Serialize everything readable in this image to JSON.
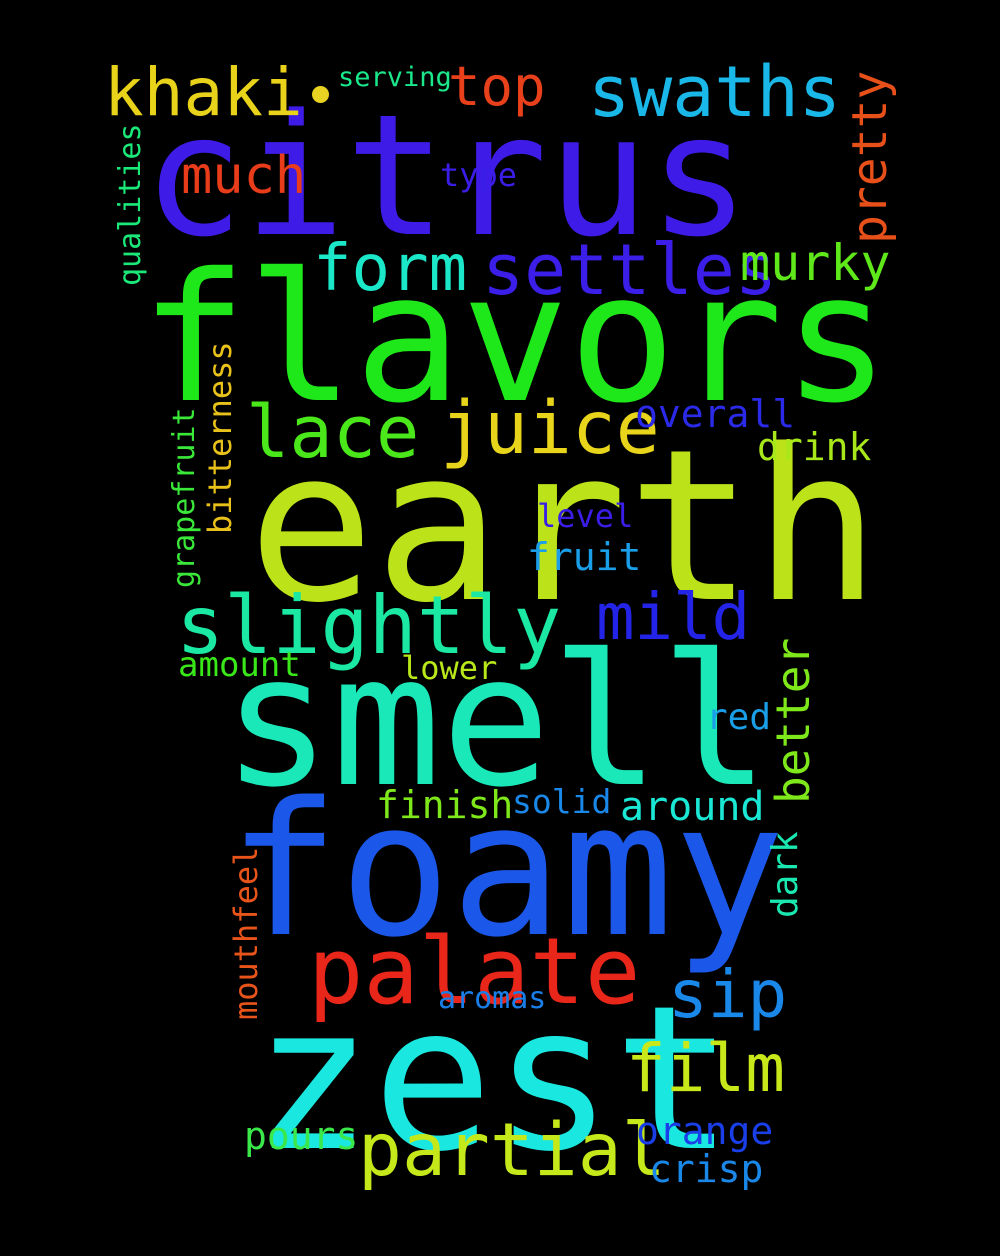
{
  "words": {
    "citrus": {
      "text": "citrus",
      "color": "#3f1be8"
    },
    "flavors": {
      "text": "flavors",
      "color": "#1fe81a"
    },
    "earth": {
      "text": "earth",
      "color": "#bce31a"
    },
    "smell": {
      "text": "smell",
      "color": "#1ae8b8"
    },
    "foamy": {
      "text": "foamy",
      "color": "#1b57e8"
    },
    "zest": {
      "text": "zest",
      "color": "#1ae8e0"
    },
    "palate": {
      "text": "palate",
      "color": "#e8261a"
    },
    "slightly": {
      "text": "slightly",
      "color": "#1ae8a3"
    },
    "settles": {
      "text": "settles",
      "color": "#3b1ee8"
    },
    "juice": {
      "text": "juice",
      "color": "#e8d41a"
    },
    "lace": {
      "text": "lace",
      "color": "#4ae81a"
    },
    "form": {
      "text": "form",
      "color": "#1ae8c8"
    },
    "khaki": {
      "text": "khaki",
      "color": "#e8d21a"
    },
    "swaths": {
      "text": "swaths",
      "color": "#1ab8e8"
    },
    "top": {
      "text": "top",
      "color": "#e8401a"
    },
    "much": {
      "text": "much",
      "color": "#e83c1a"
    },
    "murky": {
      "text": "murky",
      "color": "#5fe81a"
    },
    "mild": {
      "text": "mild",
      "color": "#2424e8"
    },
    "partial": {
      "text": "partial",
      "color": "#c5e81a"
    },
    "film": {
      "text": "film",
      "color": "#c8e81a"
    },
    "sip": {
      "text": "sip",
      "color": "#1a88e8"
    },
    "overall": {
      "text": "overall",
      "color": "#2a2ae8"
    },
    "drink": {
      "text": "drink",
      "color": "#a8e81a"
    },
    "level": {
      "text": "level",
      "color": "#3a1ee8"
    },
    "fruit": {
      "text": "fruit",
      "color": "#1a9ee8"
    },
    "amount": {
      "text": "amount",
      "color": "#3ae81a"
    },
    "lower": {
      "text": "lower",
      "color": "#b8e81a"
    },
    "red": {
      "text": "red",
      "color": "#1a9ee8"
    },
    "finish": {
      "text": "finish",
      "color": "#7ee81a"
    },
    "solid": {
      "text": "solid",
      "color": "#1a88e8"
    },
    "around": {
      "text": "around",
      "color": "#1ae8d4"
    },
    "type": {
      "text": "type",
      "color": "#3a1ee8"
    },
    "serving": {
      "text": "serving",
      "color": "#1ae88a"
    },
    "aromas": {
      "text": "aromas",
      "color": "#1a7ee8"
    },
    "pours": {
      "text": "pours",
      "color": "#3ae84a"
    },
    "orange": {
      "text": "orange",
      "color": "#1a3ee8"
    },
    "crisp": {
      "text": "crisp",
      "color": "#1a88e8"
    },
    "pretty": {
      "text": "pretty",
      "color": "#e8501a"
    },
    "qualities": {
      "text": "qualities",
      "color": "#1ae878"
    },
    "bitterness": {
      "text": "bitterness",
      "color": "#e8c21a"
    },
    "grapefruit": {
      "text": "grapefruit",
      "color": "#3ae83a"
    },
    "better": {
      "text": "better",
      "color": "#7ee81a"
    },
    "dark": {
      "text": "dark",
      "color": "#1ae8b0"
    },
    "mouthfeel": {
      "text": "mouthfeel",
      "color": "#e8541a"
    }
  }
}
